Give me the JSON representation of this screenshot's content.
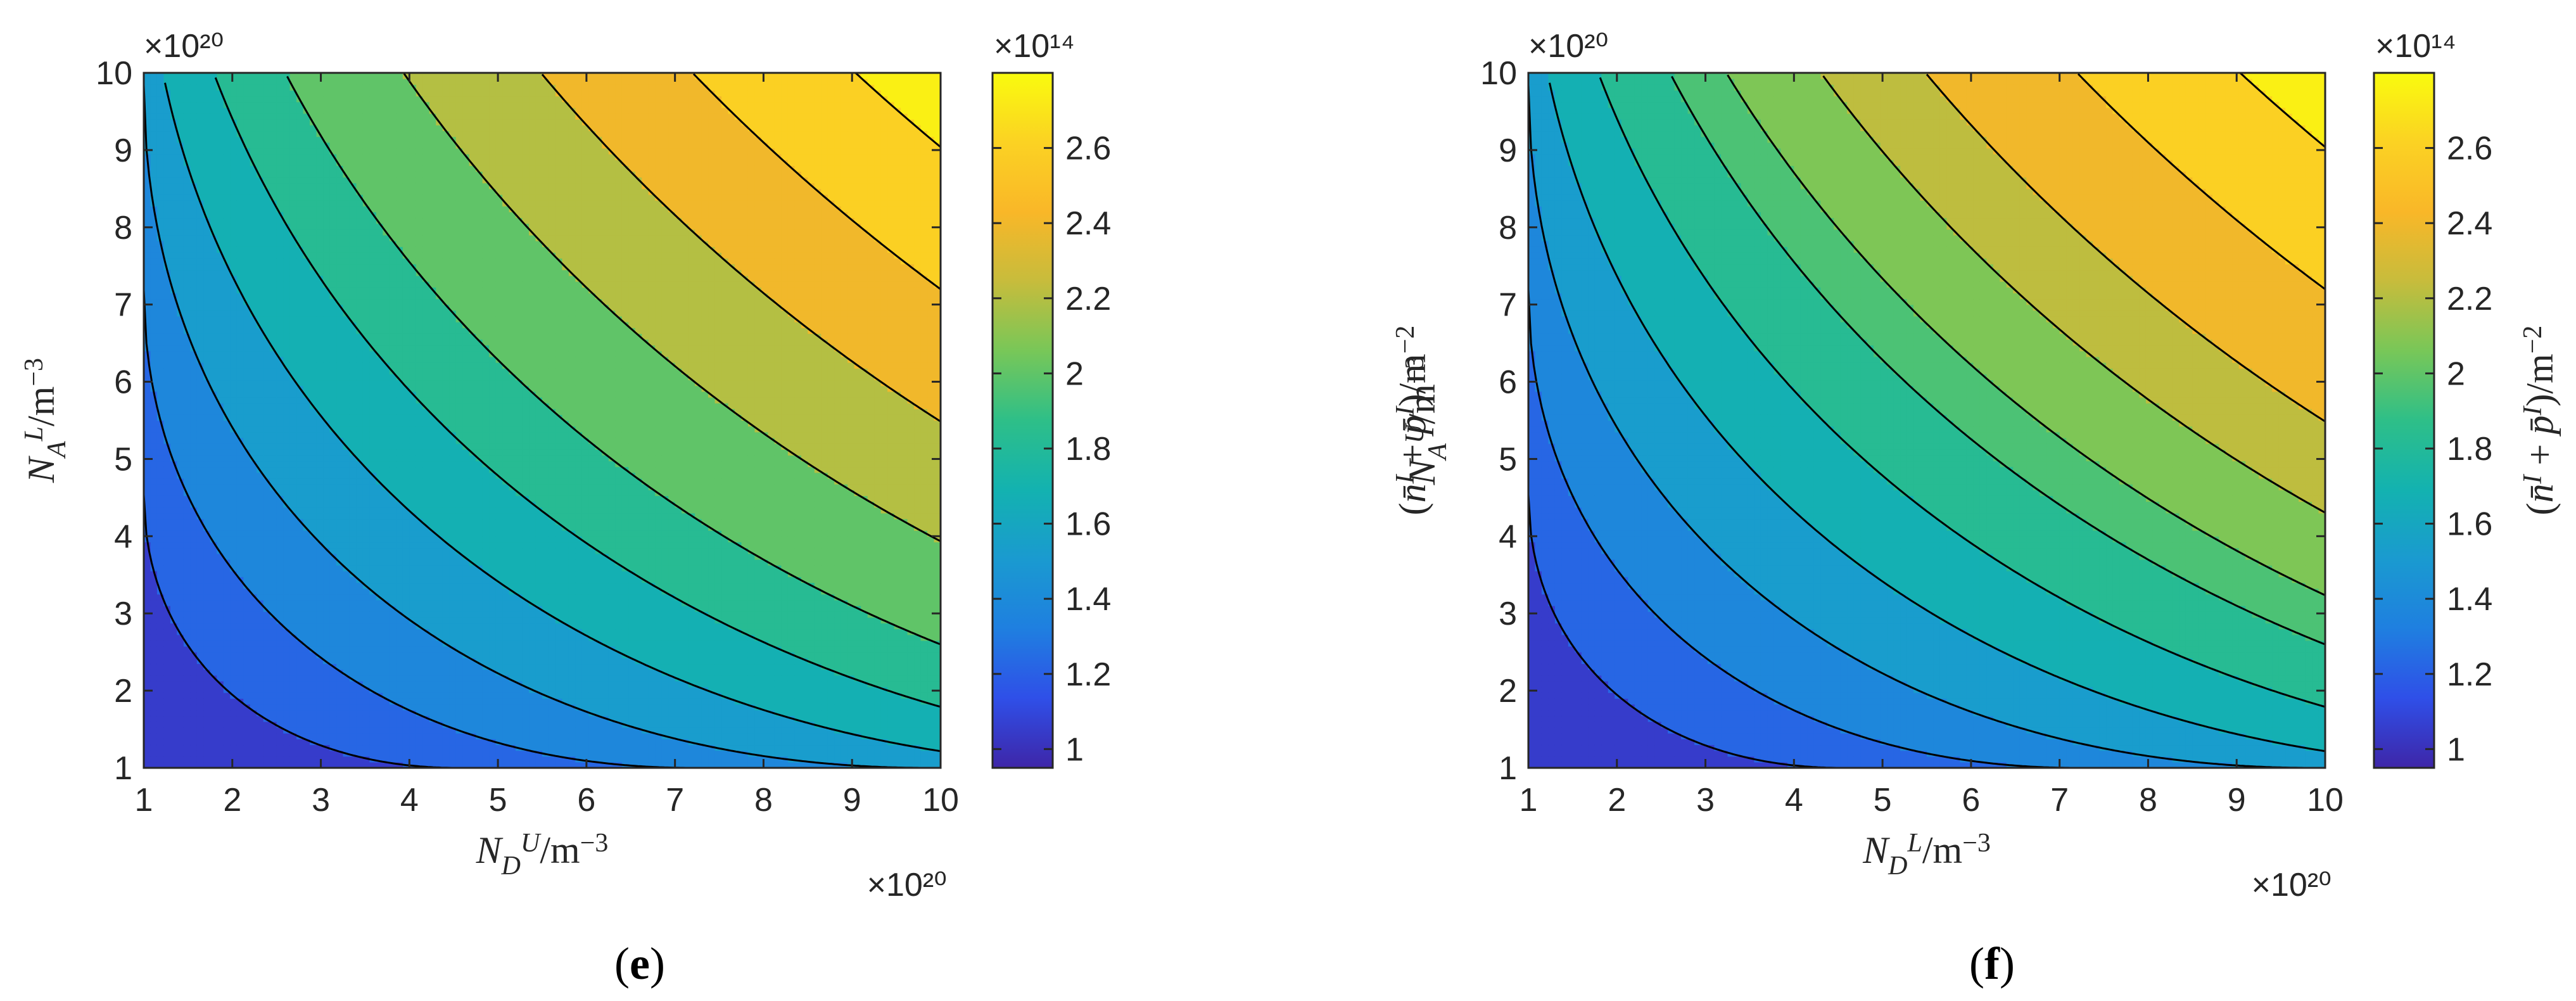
{
  "chart_data": [
    {
      "type": "heatmap",
      "panel_label": "e",
      "xlabel": "N_D^U/m^{-3}",
      "ylabel": "N_A^L/m^{-3}",
      "colorbar_label": "(n̄^I + p̄^I)/m^{-2}",
      "x_ticks": [
        "1",
        "2",
        "3",
        "4",
        "5",
        "6",
        "7",
        "8",
        "9",
        "10"
      ],
      "y_ticks": [
        "1",
        "2",
        "3",
        "4",
        "5",
        "6",
        "7",
        "8",
        "9",
        "10"
      ],
      "x_exponent_label": "×10²⁰",
      "y_exponent_label": "×10²⁰",
      "xlim": [
        1,
        10
      ],
      "ylim": [
        1,
        10
      ],
      "colorbar_ticks": [
        "1",
        "1.2",
        "1.4",
        "1.6",
        "1.8",
        "2",
        "2.2",
        "2.4",
        "2.6"
      ],
      "colorbar_exponent_label": "×10¹⁴",
      "colorbar_range": [
        0.95,
        2.8
      ],
      "z_min": 0.95,
      "z_max": 2.8,
      "contour_levels": [
        1.15,
        1.3,
        1.45,
        1.6,
        1.75,
        1.9,
        2.1,
        2.3,
        2.5,
        2.7
      ],
      "sample_values": [
        {
          "x": 1,
          "y": 1,
          "z": 0.95
        },
        {
          "x": 10,
          "y": 1,
          "z": 1.9
        },
        {
          "x": 1,
          "y": 10,
          "z": 1.9
        },
        {
          "x": 10,
          "y": 10,
          "z": 2.8
        },
        {
          "x": 5.5,
          "y": 5.5,
          "z": 2.0
        }
      ]
    },
    {
      "type": "heatmap",
      "panel_label": "f",
      "xlabel": "N_D^L/m^{-3}",
      "ylabel": "N_A^U/m^{-3}",
      "colorbar_label": "(n̄^I + p̄^I)/m^{-2}",
      "x_ticks": [
        "1",
        "2",
        "3",
        "4",
        "5",
        "6",
        "7",
        "8",
        "9",
        "10"
      ],
      "y_ticks": [
        "1",
        "2",
        "3",
        "4",
        "5",
        "6",
        "7",
        "8",
        "9",
        "10"
      ],
      "x_exponent_label": "×10²⁰",
      "y_exponent_label": "×10²⁰",
      "xlim": [
        1,
        10
      ],
      "ylim": [
        1,
        10
      ],
      "colorbar_ticks": [
        "1",
        "1.2",
        "1.4",
        "1.6",
        "1.8",
        "2",
        "2.2",
        "2.4",
        "2.6"
      ],
      "colorbar_exponent_label": "×10¹⁴",
      "colorbar_range": [
        0.95,
        2.8
      ],
      "z_min": 0.95,
      "z_max": 2.8,
      "contour_levels": [
        1.15,
        1.3,
        1.45,
        1.6,
        1.75,
        1.9,
        2.0,
        2.15,
        2.3,
        2.5,
        2.7
      ],
      "sample_values": [
        {
          "x": 1,
          "y": 1,
          "z": 0.95
        },
        {
          "x": 10,
          "y": 1,
          "z": 1.9
        },
        {
          "x": 1,
          "y": 10,
          "z": 1.9
        },
        {
          "x": 10,
          "y": 10,
          "z": 2.8
        },
        {
          "x": 5.5,
          "y": 5.5,
          "z": 2.05
        }
      ]
    }
  ],
  "colormap": [
    "#3e26a8",
    "#2f4fe8",
    "#1f7fe0",
    "#1a9ad0",
    "#13b2b0",
    "#2ebf88",
    "#78c758",
    "#c7bc3c",
    "#f9b728",
    "#fbd223",
    "#f9fb0e"
  ]
}
